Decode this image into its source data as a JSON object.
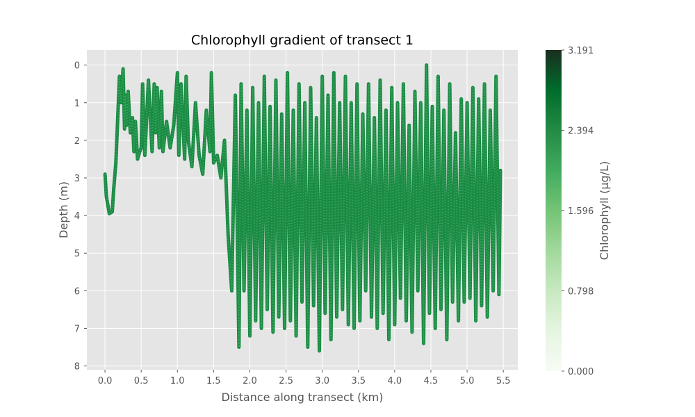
{
  "chart_data": {
    "type": "scatter",
    "title": "Chlorophyll gradient of transect 1",
    "xlabel": "Distance along transect (km)",
    "ylabel": "Depth (m)",
    "colorbar_label": "Chlorophyll (µg/L)",
    "xlim": [
      -0.25,
      5.7
    ],
    "ylim": [
      8.1,
      -0.4
    ],
    "y_inverted": true,
    "x_ticks": [
      "0.0",
      "0.5",
      "1.0",
      "1.5",
      "2.0",
      "2.5",
      "3.0",
      "3.5",
      "4.0",
      "4.5",
      "5.0",
      "5.5"
    ],
    "x_tick_values": [
      0.0,
      0.5,
      1.0,
      1.5,
      2.0,
      2.5,
      3.0,
      3.5,
      4.0,
      4.5,
      5.0,
      5.5
    ],
    "y_ticks": [
      "0",
      "1",
      "2",
      "3",
      "4",
      "5",
      "6",
      "7",
      "8"
    ],
    "y_tick_values": [
      0,
      1,
      2,
      3,
      4,
      5,
      6,
      7,
      8
    ],
    "colorbar_ticks": [
      "0.000",
      "0.798",
      "1.596",
      "2.394",
      "3.191"
    ],
    "colorbar_tick_values": [
      0.0,
      0.798,
      1.596,
      2.394,
      3.191
    ],
    "colorbar_range": [
      0.0,
      3.191
    ],
    "colormap": "Greens",
    "grid": true,
    "track_x": [
      0.0,
      0.02,
      0.06,
      0.1,
      0.12,
      0.15,
      0.2,
      0.22,
      0.25,
      0.27,
      0.28,
      0.3,
      0.32,
      0.35,
      0.38,
      0.4,
      0.42,
      0.45,
      0.48,
      0.5,
      0.52,
      0.55,
      0.6,
      0.65,
      0.68,
      0.7,
      0.72,
      0.75,
      0.78,
      0.8,
      0.85,
      0.9,
      0.95,
      1.0,
      1.02,
      1.05,
      1.1,
      1.12,
      1.15,
      1.2,
      1.25,
      1.3,
      1.35,
      1.4,
      1.45,
      1.47,
      1.5,
      1.55,
      1.6,
      1.65,
      1.7,
      1.75,
      1.8,
      1.85,
      1.88,
      1.92,
      1.96,
      2.0,
      2.04,
      2.08,
      2.12,
      2.16,
      2.2,
      2.24,
      2.28,
      2.32,
      2.36,
      2.4,
      2.44,
      2.48,
      2.52,
      2.56,
      2.6,
      2.64,
      2.68,
      2.72,
      2.76,
      2.8,
      2.84,
      2.88,
      2.92,
      2.96,
      3.0,
      3.04,
      3.08,
      3.12,
      3.16,
      3.2,
      3.24,
      3.28,
      3.32,
      3.36,
      3.4,
      3.44,
      3.48,
      3.52,
      3.56,
      3.6,
      3.64,
      3.68,
      3.72,
      3.76,
      3.8,
      3.84,
      3.88,
      3.92,
      3.96,
      4.0,
      4.04,
      4.08,
      4.12,
      4.16,
      4.2,
      4.24,
      4.28,
      4.32,
      4.36,
      4.4,
      4.44,
      4.48,
      4.52,
      4.56,
      4.6,
      4.64,
      4.68,
      4.72,
      4.76,
      4.8,
      4.84,
      4.88,
      4.92,
      4.96,
      5.0,
      5.04,
      5.08,
      5.12,
      5.16,
      5.2,
      5.24,
      5.28,
      5.32,
      5.36,
      5.4,
      5.44,
      5.46
    ],
    "track_depth": [
      2.9,
      3.5,
      3.95,
      3.9,
      3.3,
      2.6,
      0.3,
      1.0,
      0.1,
      1.7,
      0.8,
      1.6,
      0.7,
      1.8,
      1.4,
      2.3,
      1.5,
      2.5,
      2.3,
      2.2,
      0.5,
      2.4,
      0.4,
      2.3,
      0.5,
      1.8,
      0.6,
      2.2,
      0.7,
      2.3,
      1.5,
      2.2,
      1.6,
      0.2,
      2.4,
      0.5,
      2.5,
      0.3,
      2.0,
      2.7,
      1.0,
      2.4,
      2.9,
      1.2,
      2.3,
      0.2,
      2.6,
      2.4,
      3.0,
      2.0,
      4.5,
      6.0,
      0.8,
      7.5,
      0.5,
      6.0,
      1.2,
      7.2,
      0.6,
      6.8,
      1.0,
      7.0,
      0.3,
      6.5,
      1.1,
      7.1,
      0.4,
      6.7,
      1.3,
      7.0,
      0.2,
      6.8,
      1.2,
      7.2,
      0.5,
      6.3,
      1.0,
      7.5,
      0.6,
      6.4,
      1.4,
      7.6,
      0.3,
      6.6,
      0.8,
      7.3,
      0.2,
      6.7,
      1.0,
      6.5,
      0.3,
      6.9,
      1.0,
      7.0,
      0.5,
      6.8,
      1.3,
      6.0,
      0.5,
      6.7,
      1.4,
      7.0,
      0.4,
      6.6,
      1.2,
      7.3,
      0.6,
      6.9,
      1.0,
      6.2,
      0.5,
      6.8,
      1.6,
      7.1,
      0.7,
      6.0,
      1.0,
      7.4,
      0.0,
      6.6,
      1.1,
      7.0,
      0.3,
      6.5,
      1.2,
      7.3,
      0.5,
      6.3,
      1.8,
      6.8,
      0.9,
      6.3,
      1.0,
      6.2,
      0.6,
      6.8,
      0.9,
      6.4,
      0.5,
      6.7,
      1.2,
      6.0,
      0.3,
      6.1,
      2.8
    ]
  }
}
